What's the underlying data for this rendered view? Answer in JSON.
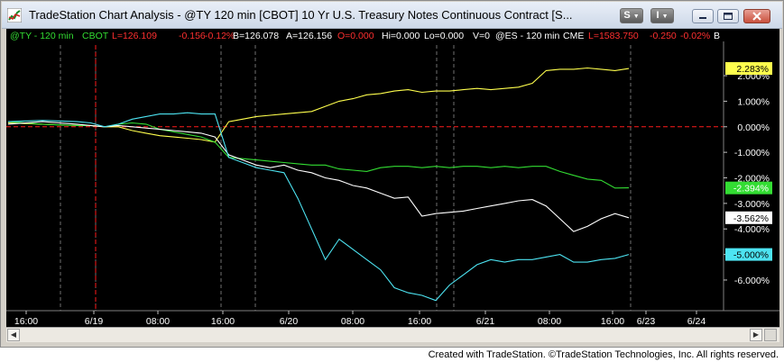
{
  "window": {
    "title": "TradeStation Chart Analysis - @TY 120 min [CBOT] 10 Yr U.S. Treasury Notes Continuous Contract [S...",
    "toolbar": {
      "s_button": "S",
      "i_button": "I"
    }
  },
  "status": {
    "ty": {
      "symbol": "@TY - 120 min",
      "exchange": "CBOT",
      "last": "L=126.109",
      "change": "-0.156",
      "pct": "-0.12%",
      "bid": "B=126.078",
      "ask": "A=126.156",
      "open": "O=0.000",
      "high": "Hi=0.000",
      "low": "Lo=0.000",
      "volume": "V=0"
    },
    "es": {
      "symbol": "@ES - 120 min",
      "exchange": "CME",
      "last": "L=1583.750",
      "change": "-0.250",
      "pct": "-0.02%",
      "more": "B"
    }
  },
  "colors": {
    "background": "#000000",
    "yellow": "#ffff4d",
    "green": "#33dd33",
    "white": "#ffffff",
    "cyan": "#4de4f2",
    "zero_line": "#ff1a1a",
    "session_line": "#c8c8c8"
  },
  "chart_data": {
    "type": "line",
    "ylim": [
      -7.2,
      3.2
    ],
    "y_ticks": [
      "2.000%",
      "1.000%",
      "0.000%",
      "-1.000%",
      "-2.000%",
      "-3.000%",
      "-4.000%",
      "-5.000%",
      "-6.000%"
    ],
    "x_ticks": [
      "16:00",
      "6/19",
      "08:00",
      "16:00",
      "6/20",
      "08:00",
      "16:00",
      "6/21",
      "08:00",
      "16:00",
      "6/23",
      "6/24"
    ],
    "series": [
      {
        "color": "#ffff4d",
        "label": "2.283%",
        "x": [
          0,
          5,
          10,
          12,
          14,
          16,
          18,
          20,
          22,
          24,
          26,
          28,
          30,
          32,
          34,
          36,
          38,
          40,
          42,
          44,
          46,
          48,
          50,
          52,
          54,
          56,
          58,
          60,
          62,
          64,
          66,
          68,
          70,
          72,
          74,
          76,
          78,
          80,
          82,
          84,
          86,
          88,
          90
        ],
        "y": [
          0.15,
          0.1,
          0.05,
          0.05,
          0,
          0,
          -0.15,
          -0.25,
          -0.35,
          -0.4,
          -0.45,
          -0.5,
          -0.6,
          0.2,
          0.3,
          0.4,
          0.45,
          0.5,
          0.55,
          0.6,
          0.8,
          1.0,
          1.1,
          1.25,
          1.3,
          1.4,
          1.45,
          1.35,
          1.4,
          1.4,
          1.45,
          1.5,
          1.45,
          1.5,
          1.55,
          1.7,
          2.2,
          2.25,
          2.25,
          2.3,
          2.25,
          2.2,
          2.28
        ]
      },
      {
        "color": "#33dd33",
        "label": "-2.394%",
        "x": [
          0,
          5,
          10,
          12,
          14,
          16,
          18,
          20,
          22,
          24,
          26,
          28,
          30,
          32,
          34,
          36,
          38,
          40,
          42,
          44,
          46,
          48,
          50,
          52,
          54,
          56,
          58,
          60,
          62,
          64,
          66,
          68,
          70,
          72,
          74,
          76,
          78,
          80,
          82,
          84,
          86,
          88,
          90
        ],
        "y": [
          0.2,
          0.1,
          0.05,
          0.05,
          0,
          0.1,
          0.15,
          0.1,
          -0.1,
          -0.2,
          -0.3,
          -0.4,
          -0.6,
          -1.2,
          -1.25,
          -1.3,
          -1.35,
          -1.4,
          -1.45,
          -1.5,
          -1.5,
          -1.65,
          -1.7,
          -1.75,
          -1.6,
          -1.55,
          -1.55,
          -1.6,
          -1.55,
          -1.6,
          -1.55,
          -1.55,
          -1.6,
          -1.55,
          -1.6,
          -1.55,
          -1.55,
          -1.75,
          -1.9,
          -2.05,
          -2.1,
          -2.4,
          -2.39
        ]
      },
      {
        "color": "#ffffff",
        "label": "-3.562%",
        "x": [
          0,
          5,
          10,
          12,
          14,
          16,
          18,
          20,
          22,
          24,
          26,
          28,
          30,
          32,
          34,
          36,
          38,
          40,
          42,
          44,
          46,
          48,
          50,
          52,
          54,
          56,
          58,
          60,
          62,
          64,
          66,
          68,
          70,
          72,
          74,
          76,
          78,
          80,
          82,
          84,
          86,
          88,
          90
        ],
        "y": [
          0.1,
          0.2,
          0.1,
          0.05,
          0,
          0.05,
          0,
          -0.05,
          -0.1,
          -0.15,
          -0.2,
          -0.25,
          -0.4,
          -1.1,
          -1.3,
          -1.5,
          -1.6,
          -1.5,
          -1.7,
          -1.8,
          -2.0,
          -2.1,
          -2.3,
          -2.4,
          -2.6,
          -2.8,
          -2.75,
          -3.5,
          -3.4,
          -3.35,
          -3.3,
          -3.2,
          -3.1,
          -3.0,
          -2.9,
          -2.85,
          -3.1,
          -3.6,
          -4.1,
          -3.9,
          -3.6,
          -3.4,
          -3.56
        ]
      },
      {
        "color": "#4de4f2",
        "label": "-5.000%",
        "x": [
          0,
          5,
          10,
          12,
          14,
          16,
          18,
          20,
          22,
          24,
          26,
          28,
          30,
          32,
          34,
          36,
          38,
          40,
          42,
          44,
          46,
          48,
          50,
          52,
          54,
          56,
          58,
          60,
          62,
          64,
          66,
          68,
          70,
          72,
          74,
          76,
          78,
          80,
          82,
          84,
          86,
          88,
          90
        ],
        "y": [
          0.2,
          0.25,
          0.2,
          0.15,
          0,
          0.1,
          0.3,
          0.4,
          0.5,
          0.5,
          0.55,
          0.5,
          0.5,
          -1.2,
          -1.4,
          -1.6,
          -1.7,
          -1.8,
          -2.8,
          -4.0,
          -5.2,
          -4.4,
          -4.8,
          -5.2,
          -5.6,
          -6.3,
          -6.5,
          -6.6,
          -6.8,
          -6.2,
          -5.8,
          -5.4,
          -5.2,
          -5.3,
          -5.2,
          -5.2,
          -5.1,
          -5.0,
          -5.3,
          -5.3,
          -5.2,
          -5.15,
          -5.0
        ]
      }
    ]
  },
  "footer": "Created with TradeStation. ©TradeStation Technologies, Inc. All rights reserved."
}
